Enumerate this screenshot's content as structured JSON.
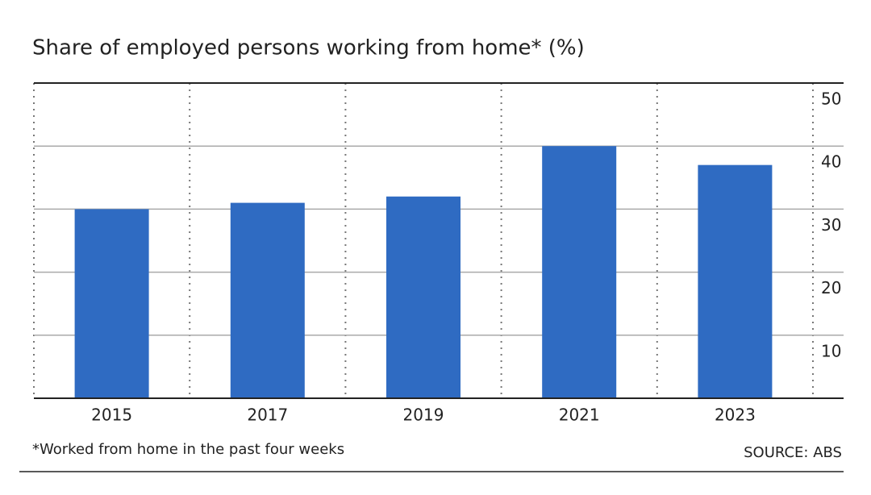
{
  "chart_data": {
    "type": "bar",
    "title": "Share of employed persons working from home* (%)",
    "categories": [
      "2015",
      "2017",
      "2019",
      "2021",
      "2023"
    ],
    "values": [
      30,
      31,
      32,
      40,
      37
    ],
    "color": "#2f6bc2",
    "ylim": [
      0,
      50
    ],
    "yticks": [
      10,
      20,
      30,
      40,
      50
    ],
    "grid": true,
    "footnote": "*Worked from home in the past four weeks",
    "source": "SOURCE: ABS"
  }
}
